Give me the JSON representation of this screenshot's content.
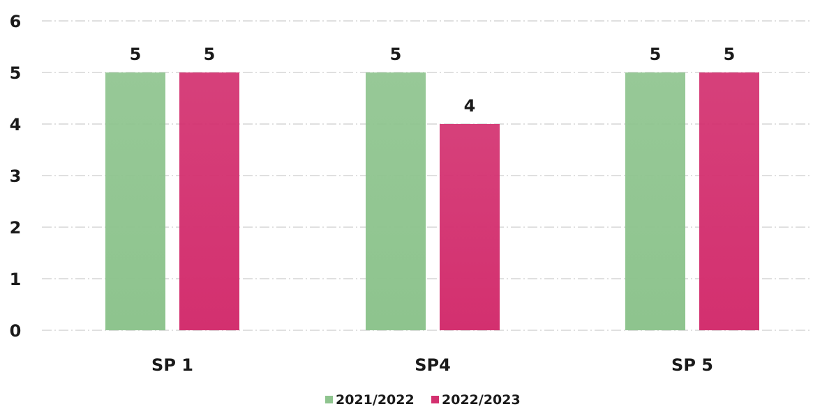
{
  "chart_data": {
    "type": "bar",
    "categories": [
      "SP 1",
      "SP4",
      "SP 5"
    ],
    "series": [
      {
        "name": "2021/2022",
        "values": [
          5,
          5,
          5
        ],
        "color": "#8ec48e"
      },
      {
        "name": "2022/2023",
        "values": [
          5,
          4,
          5
        ],
        "color": "#d3306f"
      }
    ],
    "data_labels": [
      [
        "5",
        "5",
        "5"
      ],
      [
        "5",
        "4",
        "5"
      ]
    ],
    "y_ticks": [
      "0",
      "1",
      "2",
      "3",
      "4",
      "5",
      "6"
    ],
    "ylim": [
      0,
      6
    ],
    "grid": true,
    "legend_position": "bottom-center",
    "title": "",
    "xlabel": "",
    "ylabel": ""
  }
}
